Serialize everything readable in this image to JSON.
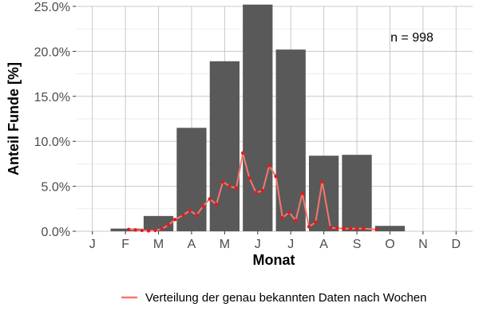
{
  "chart_data": {
    "type": "bar",
    "xlabel": "Monat",
    "ylabel": "Anteil Funde [%]",
    "annotation": "n = 998",
    "categories": [
      "J",
      "F",
      "M",
      "A",
      "M",
      "J",
      "J",
      "A",
      "S",
      "O",
      "N",
      "D"
    ],
    "y_tick_labels": [
      "0.0%",
      "5.0%",
      "10.0%",
      "15.0%",
      "20.0%",
      "25.0%"
    ],
    "y_ticks": [
      0,
      5,
      10,
      15,
      20,
      25
    ],
    "ylim": [
      0,
      25
    ],
    "grid": true,
    "series": [
      {
        "type": "bar",
        "values": [
          0,
          0.3,
          1.7,
          11.5,
          18.9,
          25.2,
          20.2,
          8.4,
          8.5,
          0.6,
          0,
          0
        ],
        "color": "#595959"
      },
      {
        "type": "line",
        "name": "Verteilung der genau bekannten Daten nach Wochen",
        "color": "#f8766d",
        "point_color": "#e41a1c",
        "x": [
          2.1,
          2.3,
          2.5,
          2.7,
          2.9,
          3.1,
          3.3,
          3.5,
          3.75,
          3.95,
          4.15,
          4.35,
          4.55,
          4.75,
          4.95,
          5.15,
          5.35,
          5.55,
          5.75,
          5.95,
          6.15,
          6.35,
          6.55,
          6.75,
          6.95,
          7.15,
          7.35,
          7.55,
          7.75,
          7.95,
          8.2,
          8.4,
          8.6,
          8.8,
          9.0,
          9.2,
          9.6
        ],
        "y": [
          0.2,
          0.15,
          0.1,
          0.05,
          0.1,
          0.25,
          0.7,
          1.3,
          1.8,
          2.3,
          1.8,
          2.8,
          3.6,
          3.0,
          5.5,
          5.0,
          4.8,
          8.7,
          5.9,
          4.3,
          4.5,
          7.3,
          6.1,
          1.5,
          2.1,
          1.2,
          4.2,
          0.5,
          1.0,
          5.5,
          0.4,
          0.35,
          0.3,
          0.3,
          0.3,
          0.3,
          0.2
        ]
      }
    ],
    "legend": {
      "position": "bottom"
    }
  }
}
